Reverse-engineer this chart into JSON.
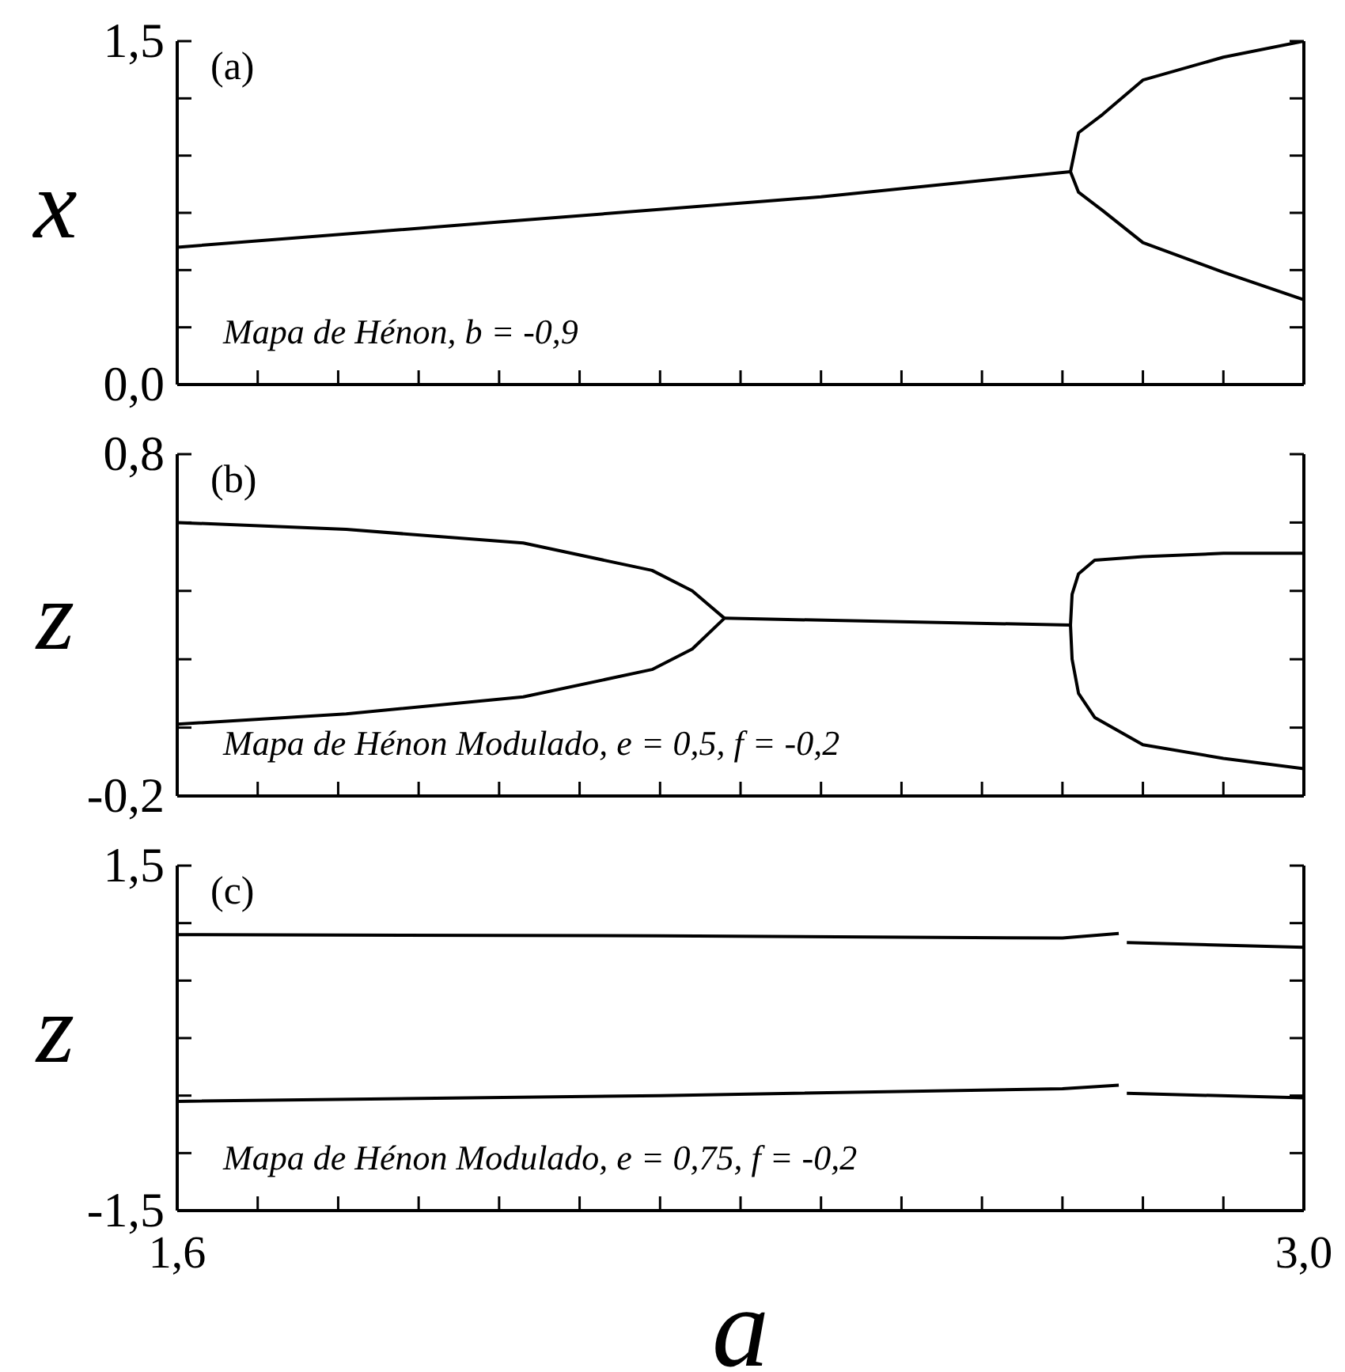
{
  "chart_data": [
    {
      "type": "line",
      "ylabel": "x",
      "annotations": [
        "(a)",
        "Mapa de Hénon, b = -0,9"
      ],
      "xlim": [
        1.6,
        3.0
      ],
      "xticks": [
        {
          "value": 1.6,
          "label": null
        },
        {
          "value": 1.7,
          "label": null
        },
        {
          "value": 1.8,
          "label": null
        },
        {
          "value": 1.9,
          "label": null
        },
        {
          "value": 2.0,
          "label": null
        },
        {
          "value": 2.1,
          "label": null
        },
        {
          "value": 2.2,
          "label": null
        },
        {
          "value": 2.3,
          "label": null
        },
        {
          "value": 2.4,
          "label": null
        },
        {
          "value": 2.5,
          "label": null
        },
        {
          "value": 2.6,
          "label": null
        },
        {
          "value": 2.7,
          "label": null
        },
        {
          "value": 2.8,
          "label": null
        },
        {
          "value": 2.9,
          "label": null
        },
        {
          "value": 3.0,
          "label": null
        }
      ],
      "ylim": [
        0.0,
        1.5
      ],
      "yticks": [
        {
          "value": 0.0,
          "label": "0,0"
        },
        {
          "value": 0.25,
          "label": null
        },
        {
          "value": 0.5,
          "label": null
        },
        {
          "value": 0.75,
          "label": null
        },
        {
          "value": 1.0,
          "label": null
        },
        {
          "value": 1.25,
          "label": null
        },
        {
          "value": 1.5,
          "label": "1,5"
        }
      ],
      "tick_labels": "y",
      "series": [
        {
          "color": "#000000",
          "x": [
            1.6,
            2.0,
            2.4,
            2.71
          ],
          "values": [
            0.6,
            0.71,
            0.82,
            0.93
          ]
        },
        {
          "color": "#000000",
          "x": [
            2.71,
            2.72,
            2.75,
            2.8,
            2.9,
            3.0
          ],
          "values": [
            0.93,
            1.1,
            1.18,
            1.33,
            1.43,
            1.5
          ]
        },
        {
          "color": "#000000",
          "x": [
            2.71,
            2.72,
            2.75,
            2.8,
            2.9,
            3.0
          ],
          "values": [
            0.93,
            0.84,
            0.76,
            0.62,
            0.49,
            0.37
          ]
        }
      ]
    },
    {
      "type": "line",
      "ylabel": "z",
      "annotations": [
        "(b)",
        "Mapa de Hénon Modulado, e = 0,5, f = -0,2"
      ],
      "xlim": [
        1.6,
        3.0
      ],
      "xticks": [
        {
          "value": 1.6,
          "label": null
        },
        {
          "value": 1.7,
          "label": null
        },
        {
          "value": 1.8,
          "label": null
        },
        {
          "value": 1.9,
          "label": null
        },
        {
          "value": 2.0,
          "label": null
        },
        {
          "value": 2.1,
          "label": null
        },
        {
          "value": 2.2,
          "label": null
        },
        {
          "value": 2.3,
          "label": null
        },
        {
          "value": 2.4,
          "label": null
        },
        {
          "value": 2.5,
          "label": null
        },
        {
          "value": 2.6,
          "label": null
        },
        {
          "value": 2.7,
          "label": null
        },
        {
          "value": 2.8,
          "label": null
        },
        {
          "value": 2.9,
          "label": null
        },
        {
          "value": 3.0,
          "label": null
        }
      ],
      "ylim": [
        -0.2,
        0.8
      ],
      "yticks": [
        {
          "value": -0.2,
          "label": "-0,2"
        },
        {
          "value": 0.0,
          "label": null
        },
        {
          "value": 0.2,
          "label": null
        },
        {
          "value": 0.4,
          "label": null
        },
        {
          "value": 0.6,
          "label": null
        },
        {
          "value": 0.8,
          "label": "0,8"
        }
      ],
      "tick_labels": "y",
      "series": [
        {
          "color": "#000000",
          "x": [
            1.6,
            1.81,
            2.03,
            2.19,
            2.24,
            2.28
          ],
          "values": [
            0.6,
            0.58,
            0.54,
            0.46,
            0.4,
            0.32
          ]
        },
        {
          "color": "#000000",
          "x": [
            1.6,
            1.81,
            2.03,
            2.19,
            2.24,
            2.28
          ],
          "values": [
            0.01,
            0.04,
            0.09,
            0.17,
            0.23,
            0.32
          ]
        },
        {
          "color": "#000000",
          "x": [
            2.28,
            2.71
          ],
          "values": [
            0.32,
            0.3
          ]
        },
        {
          "color": "#000000",
          "x": [
            3.0,
            2.9,
            2.8,
            2.74,
            2.72,
            2.712,
            2.71,
            2.712,
            2.72,
            2.74,
            2.8,
            2.9,
            3.0
          ],
          "values": [
            0.51,
            0.51,
            0.5,
            0.49,
            0.45,
            0.39,
            0.3,
            0.2,
            0.1,
            0.03,
            -0.05,
            -0.09,
            -0.12
          ]
        }
      ]
    },
    {
      "type": "line",
      "ylabel": "z",
      "xlabel": "a",
      "annotations": [
        "(c)",
        "Mapa de Hénon Modulado, e = 0,75, f = -0,2"
      ],
      "xlim": [
        1.6,
        3.0
      ],
      "xticks": [
        {
          "value": 1.6,
          "label": "1,6"
        },
        {
          "value": 1.7,
          "label": null
        },
        {
          "value": 1.8,
          "label": null
        },
        {
          "value": 1.9,
          "label": null
        },
        {
          "value": 2.0,
          "label": null
        },
        {
          "value": 2.1,
          "label": null
        },
        {
          "value": 2.2,
          "label": null
        },
        {
          "value": 2.3,
          "label": null
        },
        {
          "value": 2.4,
          "label": null
        },
        {
          "value": 2.5,
          "label": null
        },
        {
          "value": 2.6,
          "label": null
        },
        {
          "value": 2.7,
          "label": null
        },
        {
          "value": 2.8,
          "label": null
        },
        {
          "value": 2.9,
          "label": null
        },
        {
          "value": 3.0,
          "label": "3,0"
        }
      ],
      "ylim": [
        -1.5,
        1.5
      ],
      "yticks": [
        {
          "value": -1.5,
          "label": "-1,5"
        },
        {
          "value": -1.0,
          "label": null
        },
        {
          "value": -0.5,
          "label": null
        },
        {
          "value": 0.0,
          "label": null
        },
        {
          "value": 0.5,
          "label": null
        },
        {
          "value": 1.0,
          "label": null
        },
        {
          "value": 1.5,
          "label": "1,5"
        }
      ],
      "series": [
        {
          "color": "#000000",
          "x": [
            1.6,
            2.2,
            2.7,
            2.77
          ],
          "values": [
            0.9,
            0.89,
            0.87,
            0.91
          ]
        },
        {
          "color": "#000000",
          "x": [
            2.78,
            3.0
          ],
          "values": [
            0.83,
            0.79
          ]
        },
        {
          "color": "#000000",
          "x": [
            1.6,
            2.2,
            2.7,
            2.77
          ],
          "values": [
            -0.55,
            -0.5,
            -0.44,
            -0.41
          ]
        },
        {
          "color": "#000000",
          "x": [
            2.78,
            3.0
          ],
          "values": [
            -0.48,
            -0.52
          ]
        }
      ]
    }
  ]
}
